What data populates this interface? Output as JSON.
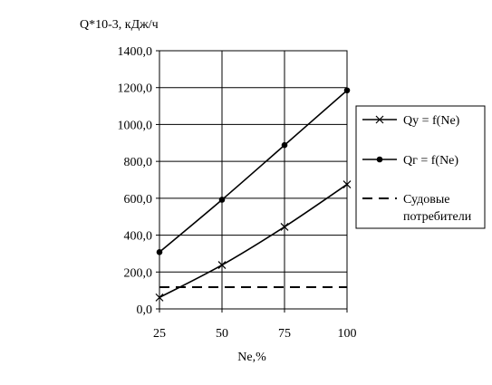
{
  "chart_data": {
    "type": "line",
    "title": "",
    "ylabel": "Q*10-3, кДж/ч",
    "xlabel": "Ne,%",
    "categories": [
      25,
      50,
      75,
      100
    ],
    "x_tick_labels": [
      "25",
      "50",
      "75",
      "100"
    ],
    "y_tick_labels": [
      "0,0",
      "200,0",
      "400,0",
      "600,0",
      "800,0",
      "1000,0",
      "1200,0",
      "1400,0"
    ],
    "ylim": [
      0,
      1400
    ],
    "grid": true,
    "legend_position": "right",
    "series": [
      {
        "name": "Qу = f(Ne)",
        "values": [
          62,
          238,
          445,
          675
        ],
        "marker": "x",
        "style": "solid",
        "color": "#000000"
      },
      {
        "name": "Qг = f(Ne)",
        "values": [
          308,
          592,
          888,
          1185
        ],
        "marker": "dot",
        "style": "solid",
        "color": "#000000"
      },
      {
        "name": "Судовые потребители",
        "values": [
          118,
          118,
          118,
          118
        ],
        "marker": "none",
        "style": "dashed",
        "color": "#000000"
      }
    ]
  }
}
